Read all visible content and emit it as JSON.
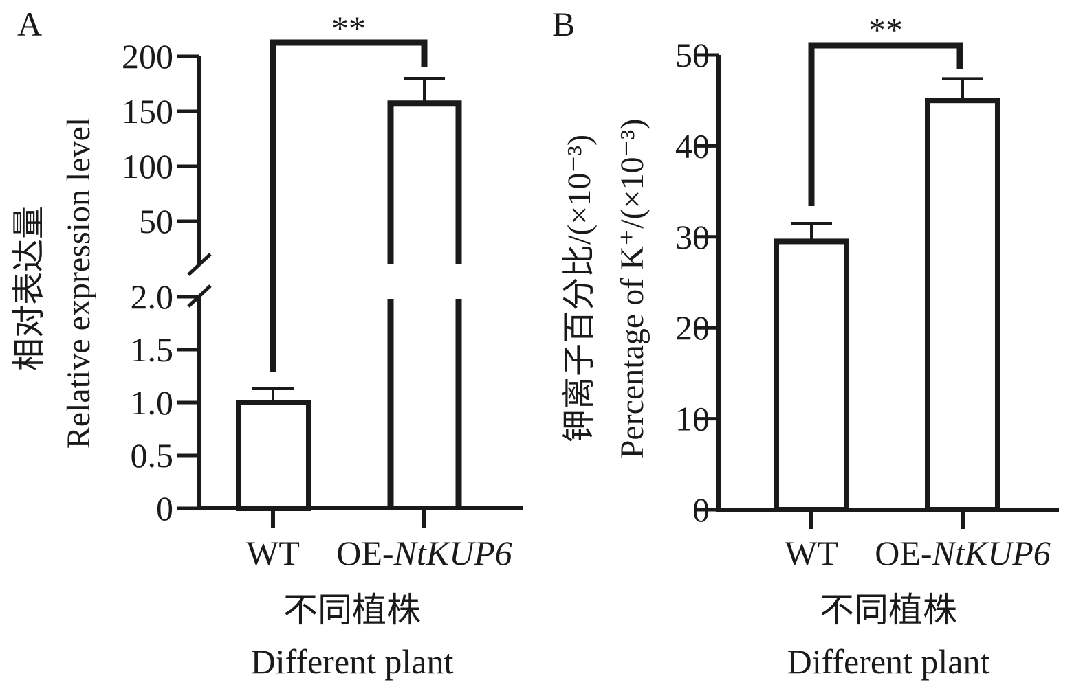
{
  "chart_data": [
    {
      "type": "bar",
      "panel_label": "A",
      "categories": [
        "WT",
        "OE-NtKUP6"
      ],
      "category_parts": [
        [
          "WT",
          ""
        ],
        [
          "OE-",
          "NtKUP6"
        ]
      ],
      "values": [
        1.0,
        157
      ],
      "error_upper": [
        1.13,
        180
      ],
      "ylabel_cn": "相对表达量",
      "ylabel_en": "Relative expression level",
      "xlabel_cn": "不同植株",
      "xlabel_en": "Different plant",
      "axis_break": true,
      "lower_ylim": [
        0,
        2.0
      ],
      "lower_ticks": [
        "0",
        "0.5",
        "1.0",
        "1.5",
        "2.0"
      ],
      "upper_ylim": [
        50,
        200
      ],
      "upper_ticks": [
        "50",
        "100",
        "150",
        "200"
      ],
      "significance": "**",
      "grid": false
    },
    {
      "type": "bar",
      "panel_label": "B",
      "categories": [
        "WT",
        "OE-NtKUP6"
      ],
      "category_parts": [
        [
          "WT",
          ""
        ],
        [
          "OE-",
          "NtKUP6"
        ]
      ],
      "values": [
        29.5,
        45
      ],
      "error_upper": [
        31.5,
        47.4
      ],
      "ylabel_cn": "钾离子百分比/(×10⁻³)",
      "ylabel_en": "Percentage of K⁺/(×10⁻³)",
      "xlabel_cn": "不同植株",
      "xlabel_en": "Different plant",
      "ylim": [
        0,
        50
      ],
      "ticks": [
        "0",
        "10",
        "20",
        "30",
        "40",
        "50"
      ],
      "significance": "**",
      "grid": false
    }
  ]
}
